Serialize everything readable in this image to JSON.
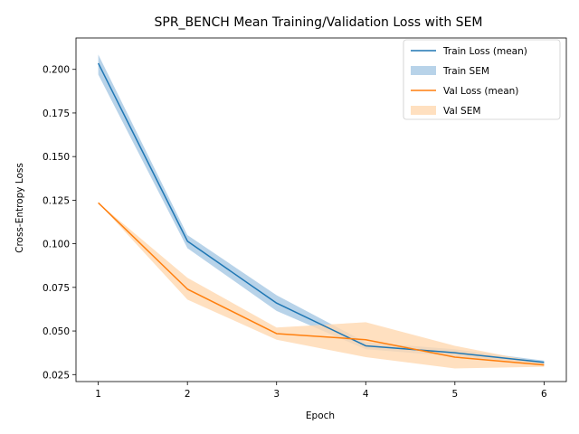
{
  "chart_data": {
    "type": "line",
    "title": "SPR_BENCH Mean Training/Validation Loss with SEM",
    "xlabel": "Epoch",
    "ylabel": "Cross-Entropy Loss",
    "x": [
      1,
      2,
      3,
      4,
      5,
      6
    ],
    "xticks": [
      "1",
      "2",
      "3",
      "4",
      "5",
      "6"
    ],
    "yticks": [
      "0.025",
      "0.050",
      "0.075",
      "0.100",
      "0.125",
      "0.150",
      "0.175",
      "0.200"
    ],
    "xlim": [
      0.75,
      6.25
    ],
    "ylim": [
      0.021,
      0.218
    ],
    "grid": false,
    "legend_position": "top-right",
    "series": [
      {
        "name": "Train Loss (mean)",
        "sem_name": "Train SEM",
        "color": "#1f77b4",
        "band_color": "#a6c8e4",
        "values": [
          0.2035,
          0.1015,
          0.066,
          0.0415,
          0.0375,
          0.032
        ],
        "upper": [
          0.2085,
          0.105,
          0.0705,
          0.0435,
          0.0395,
          0.033
        ],
        "lower": [
          0.197,
          0.0975,
          0.0615,
          0.0395,
          0.0355,
          0.031
        ]
      },
      {
        "name": "Val Loss (mean)",
        "sem_name": "Val SEM",
        "color": "#ff7f0e",
        "band_color": "#ffd8b0",
        "values": [
          0.1235,
          0.074,
          0.0485,
          0.045,
          0.035,
          0.0305
        ],
        "upper": [
          0.1235,
          0.0805,
          0.052,
          0.055,
          0.0415,
          0.0315
        ],
        "lower": [
          0.1235,
          0.068,
          0.045,
          0.035,
          0.0285,
          0.0295
        ]
      }
    ]
  }
}
